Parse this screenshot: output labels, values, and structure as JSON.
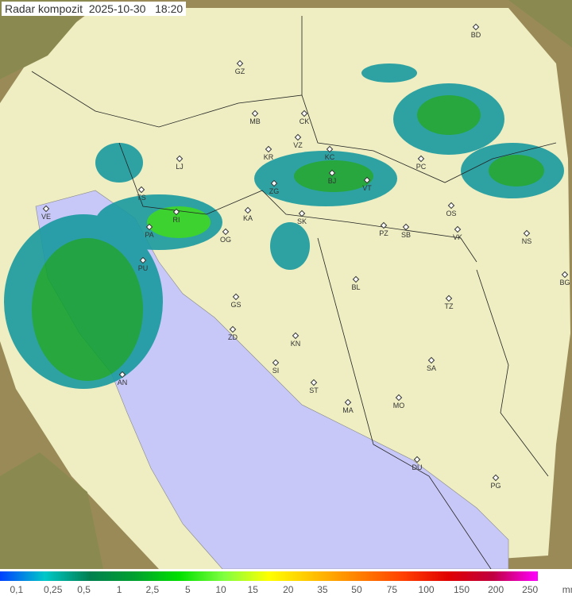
{
  "title": {
    "product": "Radar kompozit",
    "date": "2025-10-30",
    "time": "18:20"
  },
  "colors": {
    "sea": "#c8c8f8",
    "land": "#eeeec0",
    "outside": "#a89860",
    "rain_light": "#1a9aa0",
    "rain_mid": "#12a030",
    "rain_heavy": "#2ad020"
  },
  "cities": [
    "GZ",
    "MB",
    "CK",
    "VZ",
    "KC",
    "KR",
    "LJ",
    "BJ",
    "VT",
    "PC",
    "ZG",
    "TS",
    "VE",
    "RI",
    "KA",
    "SK",
    "OS",
    "PA",
    "PZ",
    "SB",
    "VK",
    "NS",
    "OG",
    "PU",
    "BL",
    "GS",
    "TZ",
    "BG",
    "ZD",
    "KN",
    "SA",
    "SI",
    "AN",
    "ST",
    "MO",
    "MA",
    "DU",
    "PG",
    "BD"
  ],
  "legend": {
    "unit": "mm/h",
    "ticks": [
      "0,1",
      "0,25",
      "0,5",
      "1",
      "2,5",
      "5",
      "10",
      "15",
      "20",
      "35",
      "50",
      "75",
      "100",
      "150",
      "200",
      "250"
    ],
    "gradient": [
      "#0040ff",
      "#00c8c8",
      "#008050",
      "#00a030",
      "#00e000",
      "#80ff40",
      "#ffff00",
      "#ffc000",
      "#ff8000",
      "#ff4000",
      "#e00000",
      "#c00040",
      "#ff00ff"
    ]
  }
}
